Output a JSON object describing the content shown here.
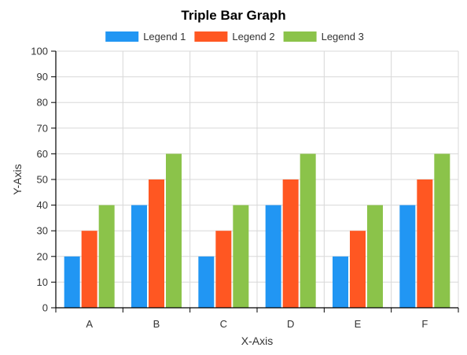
{
  "chart_data": {
    "type": "bar",
    "title": "Triple Bar Graph",
    "xlabel": "X-Axis",
    "ylabel": "Y-Axis",
    "categories": [
      "A",
      "B",
      "C",
      "D",
      "E",
      "F"
    ],
    "series": [
      {
        "name": "Legend 1",
        "color": "#2196f3",
        "values": [
          20,
          40,
          20,
          40,
          20,
          40
        ]
      },
      {
        "name": "Legend 2",
        "color": "#ff5722",
        "values": [
          30,
          50,
          30,
          50,
          30,
          50
        ]
      },
      {
        "name": "Legend 3",
        "color": "#8bc34a",
        "values": [
          40,
          60,
          40,
          60,
          40,
          60
        ]
      }
    ],
    "ylim": [
      0,
      100
    ],
    "yticks": [
      0,
      10,
      20,
      30,
      40,
      50,
      60,
      70,
      80,
      90,
      100
    ],
    "grid": true,
    "legend_position": "top"
  }
}
